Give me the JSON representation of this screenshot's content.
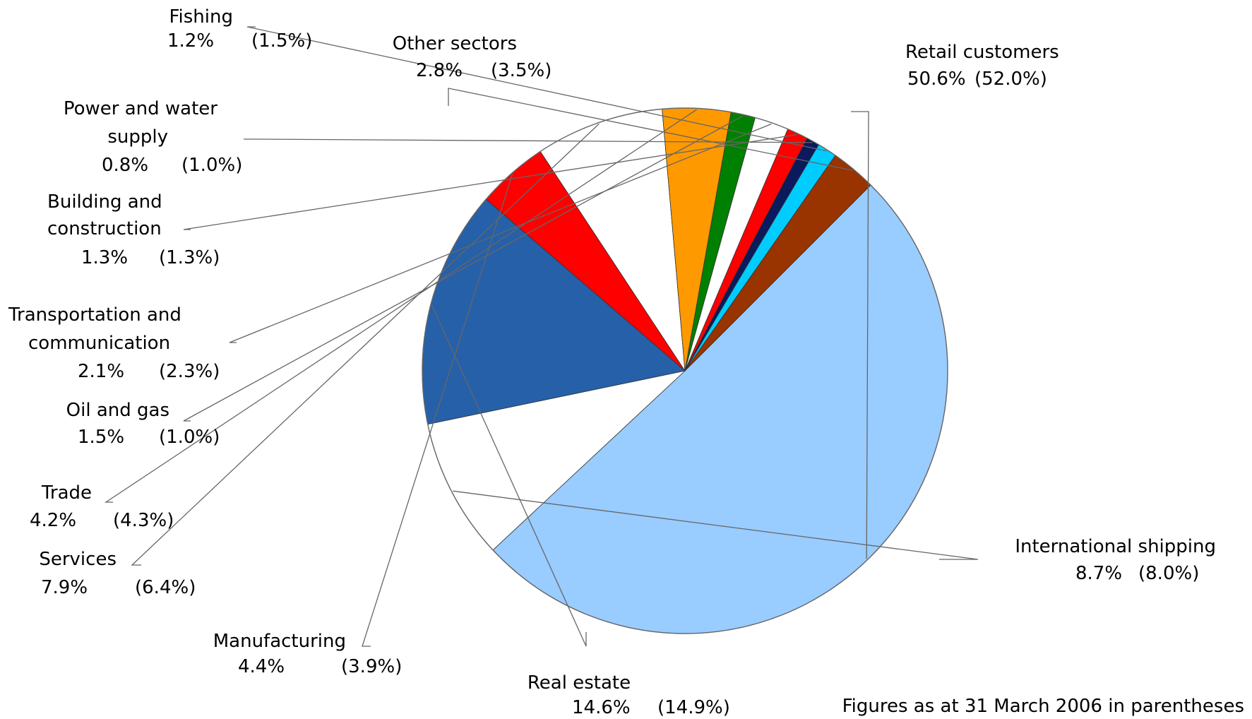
{
  "chart_data": {
    "type": "pie",
    "title": "",
    "note": "Figures as at 31 March 2006 in parentheses",
    "slices": [
      {
        "label_lines": [
          "Retail customers"
        ],
        "value": 50.6,
        "value_text": "50.6%",
        "prev_text": "(52.0%)",
        "color": "#99ccff"
      },
      {
        "label_lines": [
          "International shipping"
        ],
        "value": 8.7,
        "value_text": "8.7%",
        "prev_text": "(8.0%)",
        "color": "#ffffff"
      },
      {
        "label_lines": [
          "Real estate"
        ],
        "value": 14.6,
        "value_text": "14.6%",
        "prev_text": "(14.9%)",
        "color": "#2660a8"
      },
      {
        "label_lines": [
          "Manufacturing"
        ],
        "value": 4.4,
        "value_text": "4.4%",
        "prev_text": "(3.9%)",
        "color": "#ff0000"
      },
      {
        "label_lines": [
          "Services"
        ],
        "value": 7.9,
        "value_text": "7.9%",
        "prev_text": "(6.4%)",
        "color": "#ffffff"
      },
      {
        "label_lines": [
          "Trade"
        ],
        "value": 4.2,
        "value_text": "4.2%",
        "prev_text": "(4.3%)",
        "color": "#ff9900"
      },
      {
        "label_lines": [
          "Oil and gas"
        ],
        "value": 1.5,
        "value_text": "1.5%",
        "prev_text": "(1.0%)",
        "color": "#008000"
      },
      {
        "label_lines": [
          "Transportation and",
          "communication"
        ],
        "value": 2.1,
        "value_text": "2.1%",
        "prev_text": "(2.3%)",
        "color": "#ffffff"
      },
      {
        "label_lines": [
          "Building and",
          "construction"
        ],
        "value": 1.3,
        "value_text": "1.3%",
        "prev_text": "(1.3%)",
        "color": "#ff0000"
      },
      {
        "label_lines": [
          "Power and water",
          "supply"
        ],
        "value": 0.8,
        "value_text": "0.8%",
        "prev_text": "(1.0%)",
        "color": "#0a1a5c"
      },
      {
        "label_lines": [
          "Fishing"
        ],
        "value": 1.2,
        "value_text": "1.2%",
        "prev_text": "(1.5%)",
        "color": "#00ccff"
      },
      {
        "label_lines": [
          "Other sectors"
        ],
        "value": 2.8,
        "value_text": "2.8%",
        "prev_text": "(3.5%)",
        "color": "#993300"
      }
    ]
  }
}
